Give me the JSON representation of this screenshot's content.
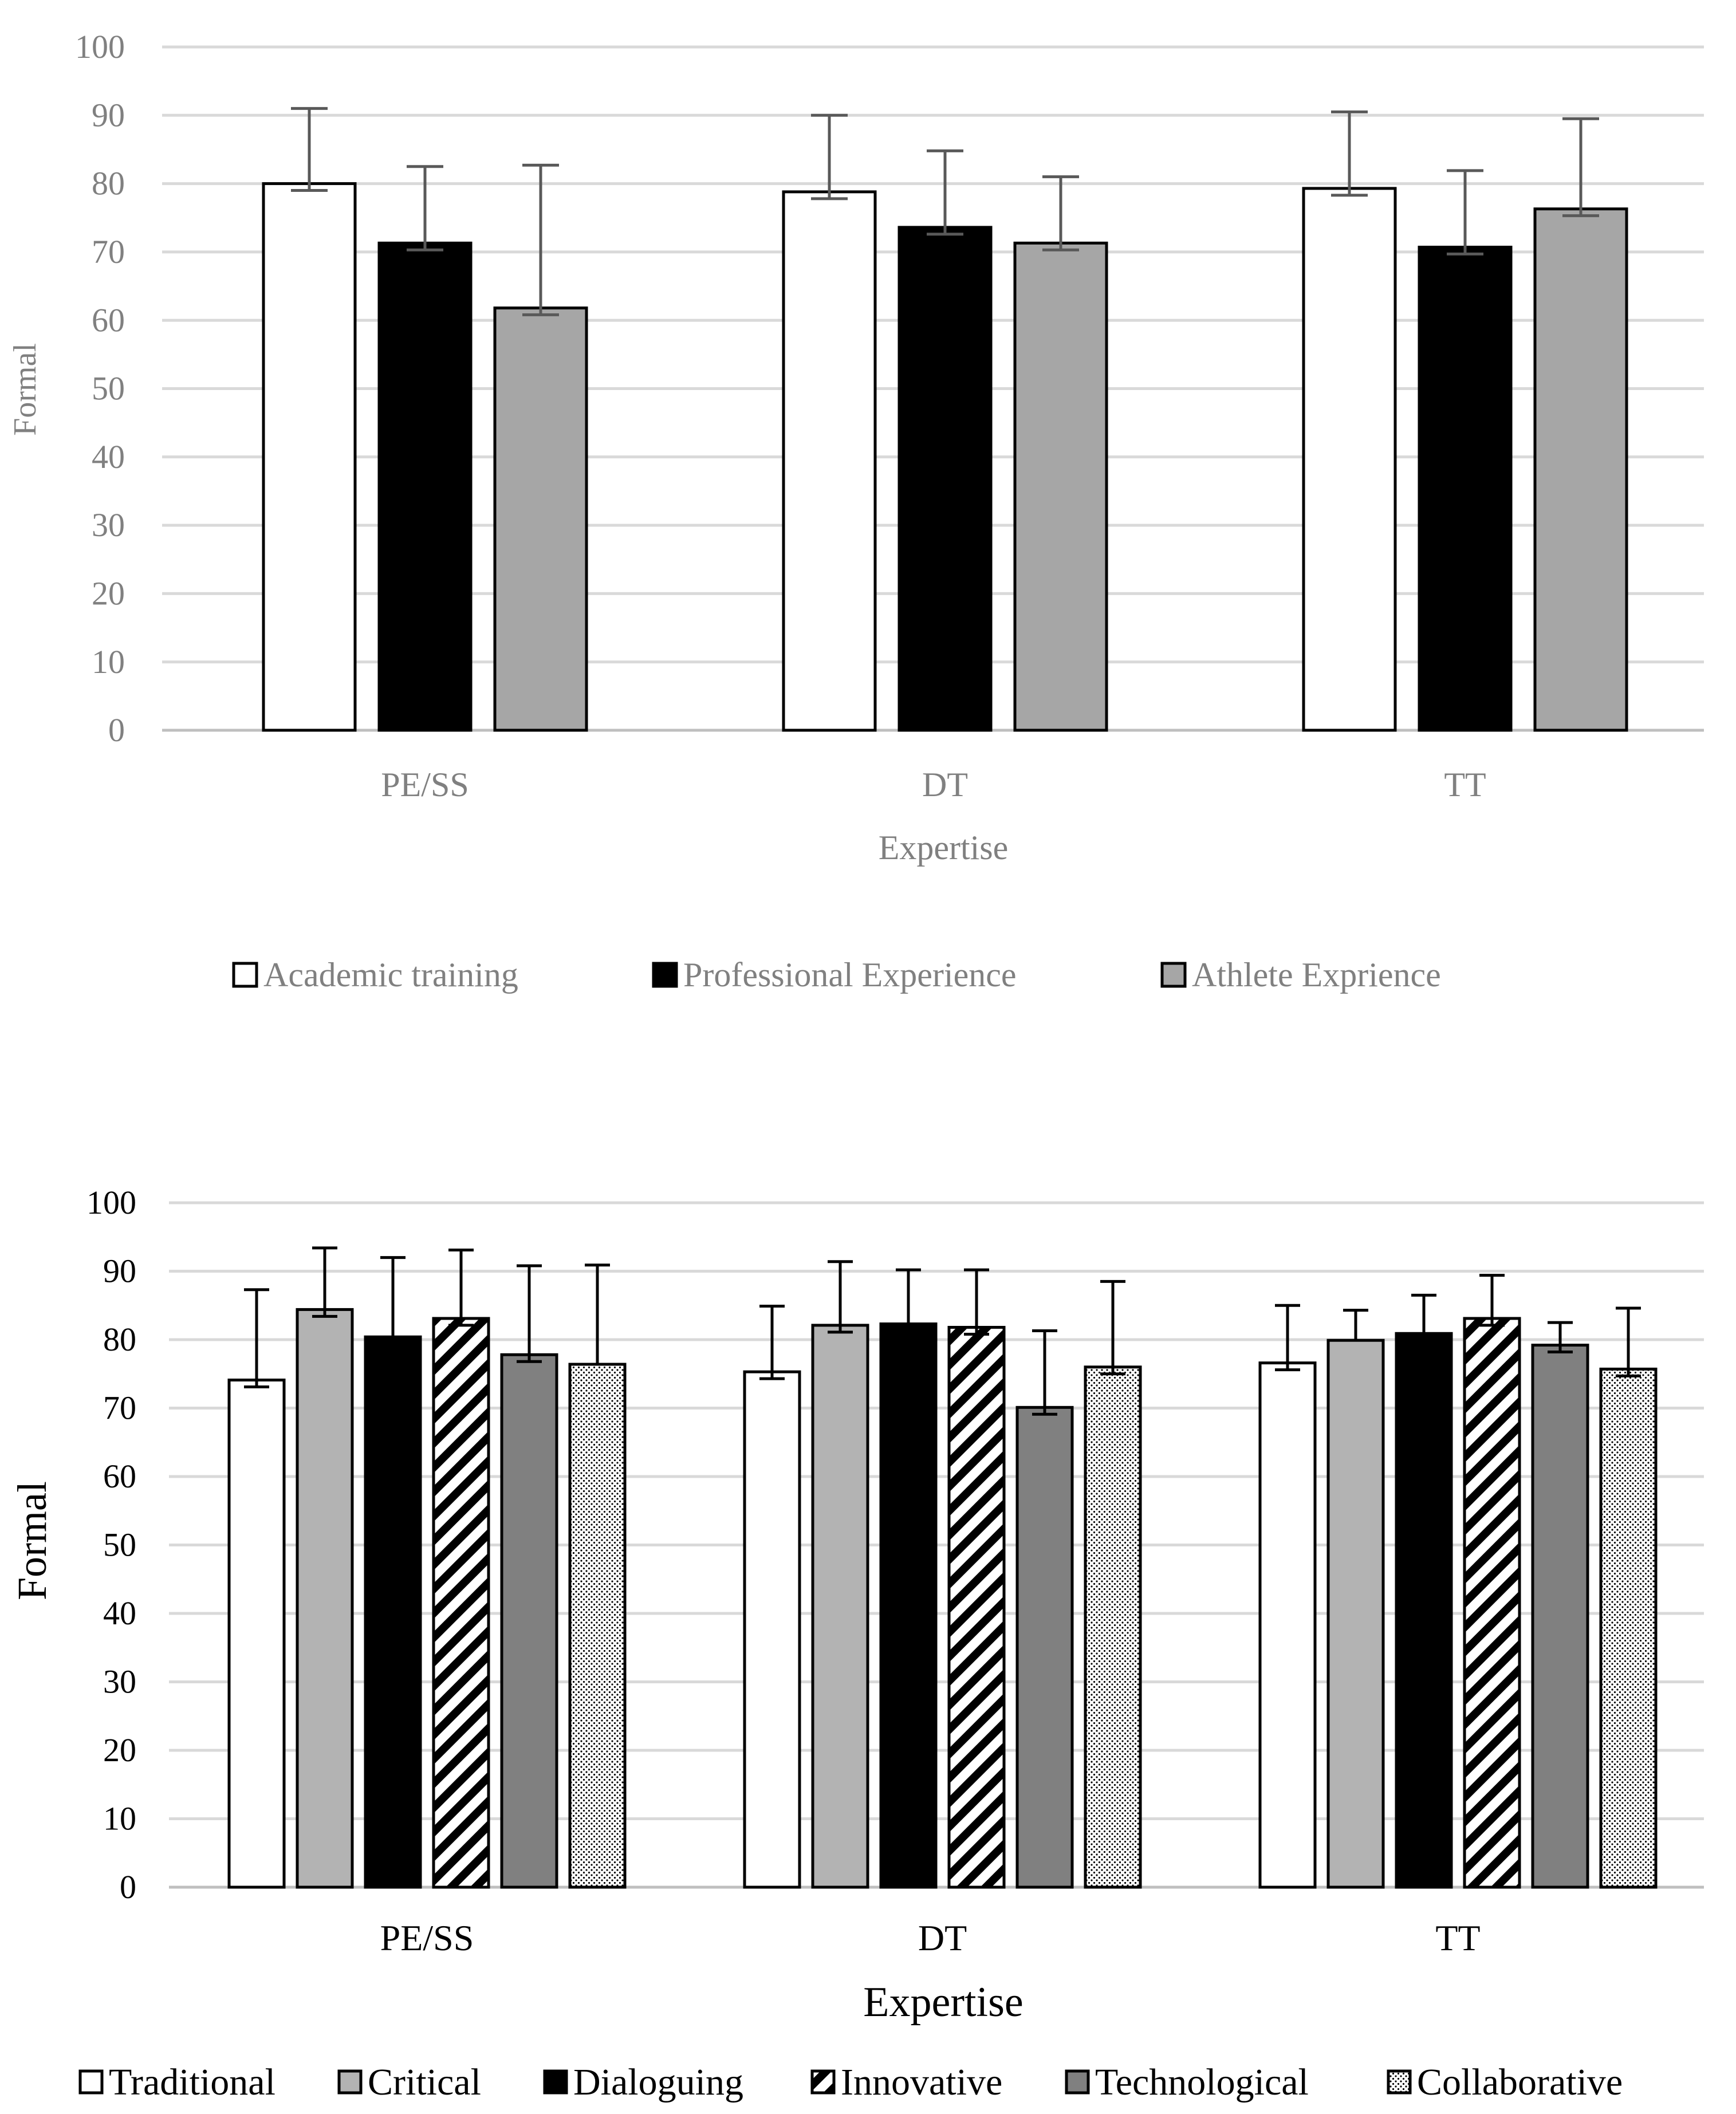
{
  "colors": {
    "grid": "#d9d9d9",
    "axis": "#bfbfbf",
    "text_gray": "#808080",
    "text_black": "#000000",
    "bar_white": "#ffffff",
    "bar_black": "#000000",
    "bar_light_gray": "#a6a6a6",
    "bar_gray_b": "#b3b3b3",
    "bar_dark_gray": "#808080",
    "error_bar_a": "#595959",
    "error_bar_b": "#000000",
    "outline": "#000000"
  },
  "chart_data": [
    {
      "type": "bar",
      "ylabel": "Formal",
      "xlabel": "Expertise",
      "ylim": [
        0,
        100
      ],
      "yticks": [
        "0",
        "10",
        "20",
        "30",
        "40",
        "50",
        "60",
        "70",
        "80",
        "90",
        "100"
      ],
      "grid": true,
      "legend": "bottom",
      "categories": [
        "PE/SS",
        "DT",
        "TT"
      ],
      "series": [
        {
          "name": "Academic training",
          "fill": "white",
          "values": [
            80,
            78.8,
            79.3
          ],
          "error_low": [
            1.0,
            1.0,
            1.0
          ],
          "error_high": [
            11.0,
            11.2,
            11.2
          ]
        },
        {
          "name": "Professional Experience",
          "fill": "black",
          "values": [
            71.3,
            73.6,
            70.7
          ],
          "error_low": [
            1.0,
            1.0,
            1.0
          ],
          "error_high": [
            11.2,
            11.2,
            11.2
          ]
        },
        {
          "name": "Athlete Exprience",
          "fill": "lightgray",
          "values": [
            61.8,
            71.3,
            76.3
          ],
          "error_low": [
            1.0,
            1.0,
            1.0
          ],
          "error_high": [
            20.9,
            9.7,
            13.2
          ]
        }
      ]
    },
    {
      "type": "bar",
      "ylabel": "Formal",
      "xlabel": "Expertise",
      "ylim": [
        0,
        100
      ],
      "yticks": [
        "0",
        "10",
        "20",
        "30",
        "40",
        "50",
        "60",
        "70",
        "80",
        "90",
        "100"
      ],
      "grid": true,
      "legend": "bottom",
      "categories": [
        "PE/SS",
        "DT",
        "TT"
      ],
      "series": [
        {
          "name": "Traditional",
          "fill": "white",
          "values": [
            74.1,
            75.3,
            76.6
          ],
          "error_low": [
            1.0,
            1.0,
            1.0
          ],
          "error_high": [
            13.2,
            9.6,
            8.4
          ]
        },
        {
          "name": "Critical",
          "fill": "gray",
          "values": [
            84.4,
            82.1,
            79.9
          ],
          "error_low": [
            1.0,
            1.0,
            0
          ],
          "error_high": [
            9.0,
            9.3,
            4.4
          ]
        },
        {
          "name": "Dialoguing",
          "fill": "black",
          "values": [
            80.4,
            82.3,
            80.9
          ],
          "error_low": [
            0,
            0,
            0
          ],
          "error_high": [
            11.6,
            7.9,
            5.6
          ]
        },
        {
          "name": "Innovative",
          "fill": "diagonal-stripes",
          "values": [
            83.1,
            81.8,
            83.1
          ],
          "error_low": [
            1.0,
            1.0,
            1.0
          ],
          "error_high": [
            10.0,
            8.4,
            6.3
          ]
        },
        {
          "name": "Technological",
          "fill": "darkgray",
          "values": [
            77.8,
            70.1,
            79.2
          ],
          "error_low": [
            1.0,
            1.0,
            1.0
          ],
          "error_high": [
            13.0,
            11.2,
            3.3
          ]
        },
        {
          "name": "Collaborative",
          "fill": "dots",
          "values": [
            76.4,
            76.0,
            75.7
          ],
          "error_low": [
            0,
            1.0,
            1.0
          ],
          "error_high": [
            14.5,
            12.5,
            8.9
          ]
        }
      ]
    }
  ]
}
